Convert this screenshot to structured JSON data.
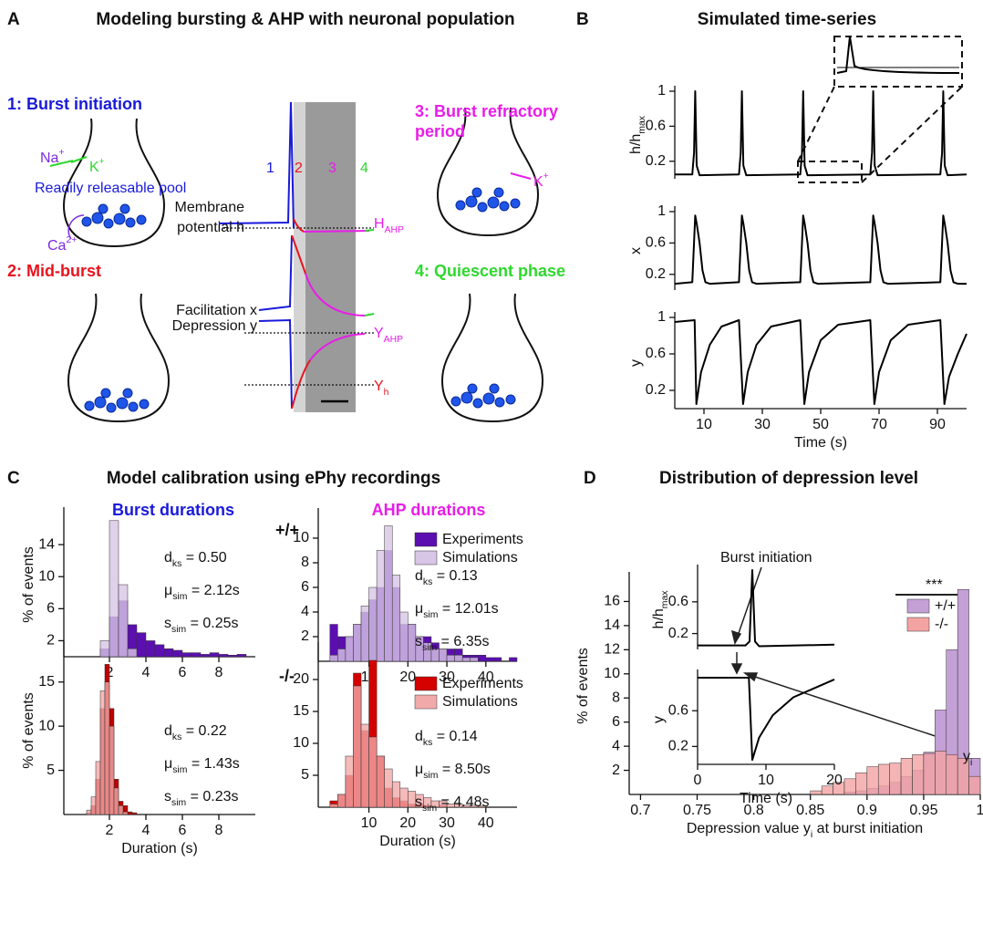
{
  "figure": {
    "panel_labels": [
      "A",
      "B",
      "C",
      "D"
    ],
    "panel_a": {
      "title": "Modeling bursting & AHP with neuronal population",
      "phases": [
        [
          "1: Burst initiation"
        ],
        [
          "2: Mid-burst"
        ],
        [
          "3: Burst refractory",
          "period"
        ],
        [
          "4: Quiescent phase"
        ]
      ],
      "ions": [
        {
          "base": "Na",
          "sup": "+"
        },
        {
          "base": "K",
          "sup": "+"
        },
        {
          "base": "Ca",
          "sup": "2+"
        },
        {
          "base": "K",
          "sup": "+"
        }
      ],
      "pool_label": "Readily releasable pool",
      "trace_numbers": [
        "1",
        "2",
        "3",
        "4"
      ],
      "trace_labels": [
        "Membrane",
        "potential h",
        "Facilitation x",
        "Depression y"
      ],
      "levels": [
        {
          "base": "H",
          "sub": "AHP"
        },
        {
          "base": "Y",
          "sub": "AHP"
        },
        {
          "base": "Y",
          "sub": "h"
        }
      ]
    },
    "panel_b_title": "Simulated time-series",
    "panel_c": {
      "title": "Model calibration using ePhy recordings",
      "subtitles": [
        "Burst durations",
        "AHP durations"
      ],
      "genotypes": [
        "+/+",
        "-/-"
      ]
    },
    "panel_d_title": "Distribution of depression level"
  },
  "chart_data": [
    {
      "type": "line",
      "ylabel": {
        "main": "h/h",
        "sub": "max"
      },
      "xlim": [
        0,
        100
      ],
      "ylim": [
        0,
        1
      ],
      "yticks": [
        0.2,
        0.6,
        1
      ],
      "x": [
        0,
        6,
        6.6,
        7,
        7.5,
        8.5,
        22,
        22.6,
        23,
        23.5,
        24.5,
        43,
        43.6,
        44,
        44.5,
        45.5,
        67,
        67.6,
        68,
        68.5,
        69.5,
        91,
        91.6,
        92,
        92.5,
        93.5,
        100
      ],
      "series": [
        {
          "color": "#000000",
          "values": [
            0.05,
            0.05,
            0.3,
            1,
            0.15,
            0.04,
            0.05,
            0.3,
            1,
            0.15,
            0.04,
            0.05,
            0.3,
            1,
            0.15,
            0.04,
            0.05,
            0.3,
            1,
            0.15,
            0.04,
            0.05,
            0.3,
            1,
            0.15,
            0.04,
            0.05
          ]
        }
      ]
    },
    {
      "type": "line",
      "ylabel": "x",
      "xlim": [
        0,
        100
      ],
      "ylim": [
        0,
        1
      ],
      "yticks": [
        0.2,
        0.6,
        1
      ],
      "x": [
        0,
        6,
        7,
        7.5,
        8.5,
        9.5,
        10.5,
        12,
        22,
        23,
        23.5,
        24.5,
        25.5,
        26.5,
        28,
        43,
        44,
        44.5,
        45.5,
        46.5,
        47.5,
        49,
        67,
        68,
        68.5,
        69.5,
        70.5,
        71.5,
        73,
        91,
        92,
        92.5,
        93.5,
        94.5,
        95.5,
        97,
        100
      ],
      "series": [
        {
          "color": "#000000",
          "values": [
            0.08,
            0.1,
            0.95,
            0.85,
            0.6,
            0.25,
            0.1,
            0.08,
            0.1,
            0.95,
            0.85,
            0.6,
            0.25,
            0.1,
            0.08,
            0.1,
            0.95,
            0.85,
            0.6,
            0.25,
            0.1,
            0.08,
            0.1,
            0.95,
            0.85,
            0.6,
            0.25,
            0.1,
            0.08,
            0.1,
            0.95,
            0.85,
            0.6,
            0.25,
            0.1,
            0.08,
            0.08
          ]
        }
      ]
    },
    {
      "type": "line",
      "ylabel": "y",
      "xlabel": "Time (s)",
      "xlim": [
        0,
        100
      ],
      "ylim": [
        0,
        1
      ],
      "xticks": [
        10,
        30,
        50,
        70,
        90
      ],
      "yticks": [
        0.2,
        0.6,
        1
      ],
      "x": [
        0,
        6.8,
        7.4,
        9,
        12,
        16,
        22,
        23.4,
        25,
        28,
        33,
        43,
        44.4,
        46,
        50,
        56,
        67,
        68.4,
        70,
        74,
        80,
        91,
        92.4,
        94,
        97,
        100
      ],
      "series": [
        {
          "color": "#000000",
          "values": [
            0.95,
            0.97,
            0.05,
            0.4,
            0.7,
            0.9,
            0.97,
            0.05,
            0.4,
            0.7,
            0.9,
            0.97,
            0.05,
            0.4,
            0.75,
            0.92,
            0.97,
            0.05,
            0.4,
            0.75,
            0.92,
            0.97,
            0.05,
            0.35,
            0.6,
            0.82
          ]
        }
      ]
    },
    {
      "type": "histogram",
      "ylabel": "% of events",
      "xlim": [
        -0.5,
        10
      ],
      "ylim": [
        0,
        18
      ],
      "xticks": [
        2,
        4,
        6,
        8
      ],
      "yticks": [
        2,
        6,
        10,
        14
      ],
      "bins": [
        1.5,
        2,
        2.5,
        3,
        3.5,
        4,
        4.5,
        5,
        5.5,
        6,
        6.5,
        7,
        7.5,
        8,
        8.5,
        9,
        9.5
      ],
      "series": [
        {
          "color": "#5b0fb0",
          "values": [
            1,
            5,
            7,
            4,
            3,
            2,
            1.5,
            1,
            0.8,
            0.5,
            0.5,
            0.3,
            0.5,
            0.3,
            0.2,
            0.3
          ]
        },
        {
          "color": "#d8c6e6",
          "values": [
            2,
            17,
            9,
            1,
            0,
            0,
            0,
            0,
            0,
            0,
            0,
            0,
            0,
            0,
            0,
            0
          ]
        }
      ],
      "annotations": [
        {
          "symbol": "d",
          "sub": "ks",
          "text": " = 0.50"
        },
        {
          "symbol": "μ",
          "sub": "sim",
          "text": " = 2.12s"
        },
        {
          "symbol": "s",
          "sub": "sim",
          "text": " = 0.25s"
        }
      ]
    },
    {
      "type": "histogram",
      "xlim": [
        -3,
        48
      ],
      "ylim": [
        0,
        12
      ],
      "xticks": [
        10,
        20,
        30,
        40
      ],
      "yticks": [
        2,
        4,
        6,
        8,
        10
      ],
      "bins": [
        0,
        2,
        4,
        6,
        8,
        10,
        12,
        14,
        16,
        18,
        20,
        22,
        24,
        26,
        28,
        30,
        32,
        34,
        36,
        38,
        40,
        42,
        44,
        46,
        48
      ],
      "legend": true,
      "series": [
        {
          "name": "Experiments",
          "color": "#5b0fb0",
          "values": [
            3,
            2,
            2,
            3,
            4,
            5,
            6,
            9,
            6,
            3,
            3,
            2,
            2,
            1.5,
            1,
            1,
            1,
            0.5,
            0.5,
            0.5,
            0.3,
            0.3,
            0,
            0.3
          ]
        },
        {
          "name": "Simulations",
          "color": "#d8c6e6",
          "values": [
            0.5,
            1,
            2,
            3,
            4.5,
            6,
            9,
            11,
            7,
            4,
            3,
            2,
            1.5,
            1,
            1,
            0.5,
            0.5,
            0.3,
            0.3,
            0,
            0,
            0,
            0,
            0
          ]
        }
      ],
      "annotations": [
        {
          "symbol": "d",
          "sub": "ks",
          "text": " = 0.13"
        },
        {
          "symbol": "μ",
          "sub": "sim",
          "text": " = 12.01s"
        },
        {
          "symbol": "s",
          "sub": "sim",
          "text": " = 6.35s"
        }
      ]
    },
    {
      "type": "histogram",
      "ylabel": "% of events",
      "xlabel": "Duration (s)",
      "xlim": [
        -0.5,
        10
      ],
      "ylim": [
        0,
        19
      ],
      "xticks": [
        2,
        4,
        6,
        8
      ],
      "yticks": [
        5,
        10,
        15
      ],
      "bins": [
        0.5,
        0.75,
        1,
        1.25,
        1.5,
        1.75,
        2,
        2.25,
        2.5,
        2.75,
        3,
        3.25,
        3.5
      ],
      "series": [
        {
          "color": "#c00000",
          "values": [
            0,
            0.2,
            1,
            4,
            12,
            17,
            12,
            4,
            1.5,
            1,
            0.3,
            0.2
          ]
        },
        {
          "color": "#f2a9a9",
          "values": [
            0,
            0.5,
            2,
            6,
            14,
            15,
            10,
            3,
            1,
            0.3,
            0,
            0
          ]
        }
      ],
      "annotations": [
        {
          "symbol": "d",
          "sub": "ks",
          "text": " = 0.22"
        },
        {
          "symbol": "μ",
          "sub": "sim",
          "text": " = 1.43s"
        },
        {
          "symbol": "s",
          "sub": "sim",
          "text": " = 0.23s"
        }
      ]
    },
    {
      "type": "histogram",
      "xlabel": "Duration (s)",
      "xlim": [
        -3,
        48
      ],
      "ylim": [
        0,
        25
      ],
      "xticks": [
        10,
        20,
        30,
        40
      ],
      "yticks": [
        5,
        10,
        15,
        20
      ],
      "bins": [
        0,
        2,
        4,
        6,
        8,
        10,
        12,
        14,
        16,
        18,
        20,
        22,
        24,
        26,
        28,
        30,
        32,
        34,
        36,
        38,
        40
      ],
      "legend": true,
      "series": [
        {
          "name": "Experiments",
          "color": "#d40000",
          "values": [
            1,
            2,
            5,
            21,
            12,
            23,
            8,
            3,
            1.5,
            1,
            0.5,
            0.5,
            0.3,
            0,
            0.3,
            0,
            0,
            0,
            0,
            0
          ]
        },
        {
          "name": "Simulations",
          "color": "#f2a9a9",
          "values": [
            0.5,
            2,
            8,
            19,
            13,
            11,
            8,
            6,
            4,
            3,
            2.5,
            2,
            1.5,
            1,
            1,
            0.5,
            0.5,
            0.3,
            0.3,
            0.2
          ]
        }
      ],
      "annotations": [
        {
          "symbol": "d",
          "sub": "ks",
          "text": " = 0.14"
        },
        {
          "symbol": "μ",
          "sub": "sim",
          "text": " = 8.50s"
        },
        {
          "symbol": "s",
          "sub": "sim",
          "text": " = 4.48s"
        }
      ]
    },
    {
      "type": "histogram",
      "ylabel": "% of events",
      "xlabel": {
        "main": "Depression value y",
        "sub": "i",
        "text": "  at burst initiation"
      },
      "xlim": [
        0.69,
        1.0
      ],
      "ylim": [
        0,
        18
      ],
      "xticks": [
        0.7,
        0.75,
        0.8,
        0.85,
        0.9,
        0.95,
        1
      ],
      "yticks": [
        2,
        4,
        6,
        8,
        10,
        12,
        14,
        16
      ],
      "bins": [
        0.85,
        0.86,
        0.87,
        0.88,
        0.89,
        0.9,
        0.91,
        0.92,
        0.93,
        0.94,
        0.95,
        0.96,
        0.97,
        0.98,
        0.99,
        1.0
      ],
      "legend": true,
      "series": [
        {
          "name": "+/+",
          "color": "#c3a0d6",
          "values": [
            0,
            0,
            0,
            0.2,
            0.3,
            0.5,
            0.7,
            1,
            1.5,
            2,
            3.5,
            7,
            12,
            17,
            3
          ]
        },
        {
          "name": "-/-",
          "color": "#f4a3a3",
          "values": [
            0.3,
            0.7,
            1,
            1.3,
            1.8,
            2.3,
            2.5,
            2.6,
            3,
            3.3,
            3.4,
            3.6,
            3.3,
            3,
            1.5
          ]
        }
      ],
      "annotations": [
        "***"
      ]
    },
    {
      "type": "line",
      "ylabel": {
        "main": "h/h",
        "sub": "max"
      },
      "xlim": [
        0,
        20
      ],
      "ylim": [
        0,
        1
      ],
      "yticks": [
        0.2,
        0.6
      ],
      "x": [
        0,
        7,
        7.6,
        8,
        8.4,
        9,
        20
      ],
      "series": [
        {
          "color": "#000000",
          "values": [
            0.05,
            0.05,
            0.1,
            1,
            0.1,
            0.04,
            0.06
          ]
        }
      ],
      "annotations": [
        "Burst initiation"
      ]
    },
    {
      "type": "line",
      "ylabel": "y",
      "xlabel": "Time (s)",
      "xlim": [
        0,
        20
      ],
      "ylim": [
        0,
        1
      ],
      "xticks": [
        0,
        10,
        20
      ],
      "yticks": [
        0.2,
        0.6
      ],
      "x": [
        0,
        7.5,
        8,
        9,
        11,
        14,
        20
      ],
      "series": [
        {
          "color": "#000000",
          "values": [
            0.97,
            0.97,
            0.05,
            0.3,
            0.55,
            0.75,
            0.95
          ]
        }
      ],
      "annotations": [
        {
          "base": "y",
          "sub": "i"
        }
      ]
    }
  ]
}
